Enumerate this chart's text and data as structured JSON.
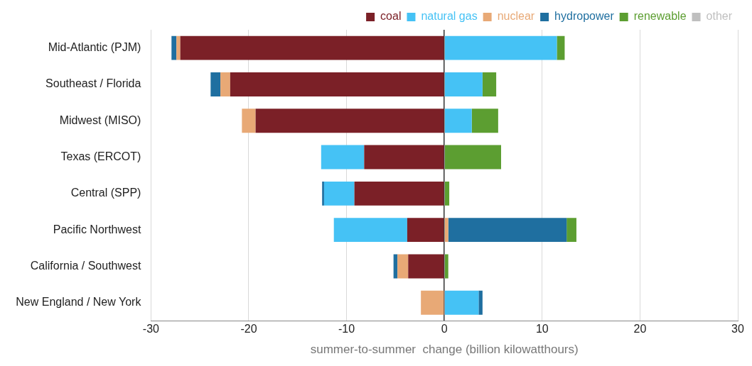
{
  "chart_data": {
    "type": "bar",
    "orientation": "horizontal",
    "stacked": true,
    "xlabel": "summer-to-summer  change (billion kilowatthours)",
    "categories": [
      "Mid-Atlantic (PJM)",
      "Southeast / Florida",
      "Midwest (MISO)",
      "Texas (ERCOT)",
      "Central (SPP)",
      "Pacific Northwest",
      "California / Southwest",
      "New England / New York"
    ],
    "series": [
      {
        "name": "coal",
        "color": "#7b2027",
        "values": [
          -27.0,
          -21.9,
          -19.3,
          -8.2,
          -9.2,
          -3.8,
          -3.7,
          null
        ]
      },
      {
        "name": "natural gas",
        "color": "#45c2f5",
        "values": [
          11.5,
          3.9,
          2.8,
          -4.4,
          -3.1,
          -7.5,
          null,
          3.5
        ]
      },
      {
        "name": "nuclear",
        "color": "#e8a976",
        "values": [
          -0.4,
          -1.0,
          -1.4,
          null,
          null,
          0.4,
          -1.1,
          -2.4
        ]
      },
      {
        "name": "hydropower",
        "color": "#1f6fa0",
        "values": [
          -0.5,
          -1.0,
          null,
          null,
          -0.2,
          12.1,
          -0.4,
          0.4
        ]
      },
      {
        "name": "renewable",
        "color": "#5c9e31",
        "values": [
          0.8,
          1.4,
          2.7,
          5.8,
          0.5,
          1.0,
          0.4,
          null
        ]
      },
      {
        "name": "other",
        "color": "#bfbfbf",
        "values": [
          null,
          null,
          null,
          null,
          null,
          null,
          null,
          null
        ]
      }
    ],
    "xlim": [
      -30,
      30
    ],
    "xticks": [
      -30,
      -20,
      -10,
      0,
      10,
      20,
      30
    ],
    "grid": "x",
    "legend": "top"
  }
}
